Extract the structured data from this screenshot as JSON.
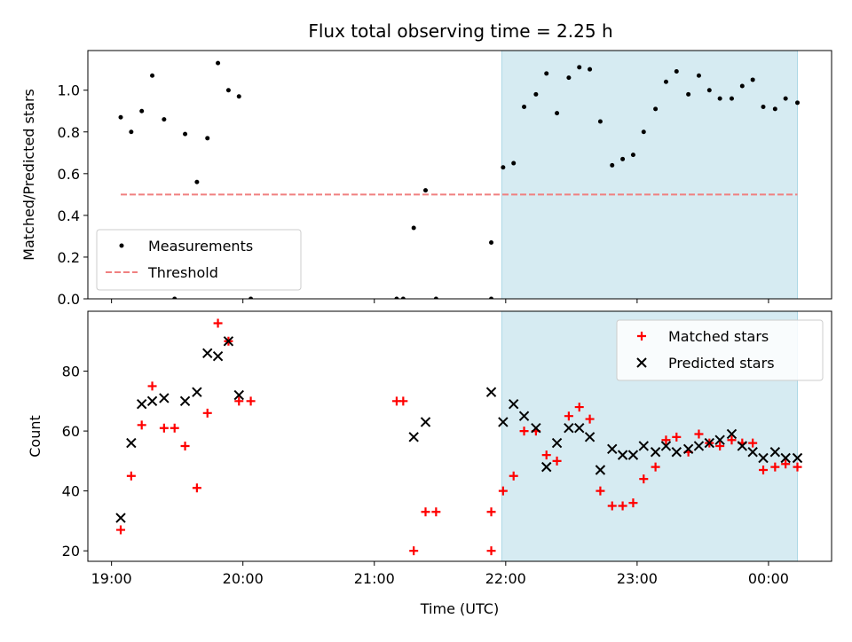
{
  "chart_data": {
    "title": "Flux total observing time = 2.25 h",
    "x_tick_labels": [
      "19:00",
      "20:00",
      "21:00",
      "22:00",
      "23:00",
      "00:00"
    ],
    "xlabel": "Time (UTC)",
    "x_unit": "hours UTC (values past 24 are after midnight)",
    "x_ticks": [
      19,
      20,
      21,
      22,
      23,
      24
    ],
    "xlim": [
      18.82,
      24.48
    ],
    "highlight_span": {
      "x": [
        21.97,
        24.22
      ],
      "color": "#add8e6"
    },
    "colors": {
      "measurements": "#000000",
      "threshold": "#f08080",
      "matched": "#ff0000",
      "predicted": "#000000"
    },
    "panels": [
      {
        "type": "scatter",
        "ylabel": "Matched/Predicted stars",
        "ylim": [
          0,
          1.19
        ],
        "y_ticks": [
          0.0,
          0.2,
          0.4,
          0.6,
          0.8,
          1.0
        ],
        "y_tick_labels": [
          "0.0",
          "0.2",
          "0.4",
          "0.6",
          "0.8",
          "1.0"
        ],
        "legend_position": "lower-left",
        "series": [
          {
            "name": "Measurements",
            "marker": "dot",
            "points": [
              [
                19.07,
                0.87
              ],
              [
                19.15,
                0.8
              ],
              [
                19.23,
                0.9
              ],
              [
                19.31,
                1.07
              ],
              [
                19.4,
                0.86
              ],
              [
                19.48,
                0.0
              ],
              [
                19.56,
                0.79
              ],
              [
                19.65,
                0.56
              ],
              [
                19.73,
                0.77
              ],
              [
                19.81,
                1.13
              ],
              [
                19.89,
                1.0
              ],
              [
                19.97,
                0.97
              ],
              [
                20.06,
                0.0
              ],
              [
                21.17,
                0.0
              ],
              [
                21.22,
                0.0
              ],
              [
                21.3,
                0.34
              ],
              [
                21.39,
                0.52
              ],
              [
                21.47,
                0.0
              ],
              [
                21.89,
                0.27
              ],
              [
                21.89,
                0.0
              ],
              [
                21.98,
                0.63
              ],
              [
                22.06,
                0.65
              ],
              [
                22.14,
                0.92
              ],
              [
                22.23,
                0.98
              ],
              [
                22.31,
                1.08
              ],
              [
                22.39,
                0.89
              ],
              [
                22.48,
                1.06
              ],
              [
                22.56,
                1.11
              ],
              [
                22.64,
                1.1
              ],
              [
                22.72,
                0.85
              ],
              [
                22.81,
                0.64
              ],
              [
                22.89,
                0.67
              ],
              [
                22.97,
                0.69
              ],
              [
                23.05,
                0.8
              ],
              [
                23.14,
                0.91
              ],
              [
                23.22,
                1.04
              ],
              [
                23.3,
                1.09
              ],
              [
                23.39,
                0.98
              ],
              [
                23.47,
                1.07
              ],
              [
                23.55,
                1.0
              ],
              [
                23.63,
                0.96
              ],
              [
                23.72,
                0.96
              ],
              [
                23.8,
                1.02
              ],
              [
                23.88,
                1.05
              ],
              [
                23.96,
                0.92
              ],
              [
                24.05,
                0.91
              ],
              [
                24.13,
                0.96
              ],
              [
                24.22,
                0.94
              ]
            ]
          },
          {
            "name": "Threshold",
            "marker": "dashed-line",
            "points": [
              [
                19.07,
                0.5
              ],
              [
                24.22,
                0.5
              ]
            ]
          }
        ]
      },
      {
        "type": "scatter",
        "ylabel": "Count",
        "ylim": [
          16.5,
          100
        ],
        "y_ticks": [
          20,
          40,
          60,
          80
        ],
        "y_tick_labels": [
          "20",
          "40",
          "60",
          "80"
        ],
        "legend_position": "top-right",
        "series": [
          {
            "name": "Matched stars",
            "marker": "plus",
            "points": [
              [
                19.07,
                27
              ],
              [
                19.15,
                45
              ],
              [
                19.23,
                62
              ],
              [
                19.31,
                75
              ],
              [
                19.4,
                61
              ],
              [
                19.48,
                61
              ],
              [
                19.56,
                55
              ],
              [
                19.65,
                41
              ],
              [
                19.73,
                66
              ],
              [
                19.81,
                96
              ],
              [
                19.89,
                90
              ],
              [
                19.97,
                70
              ],
              [
                20.06,
                70
              ],
              [
                21.17,
                70
              ],
              [
                21.22,
                70
              ],
              [
                21.3,
                20
              ],
              [
                21.39,
                33
              ],
              [
                21.47,
                33
              ],
              [
                21.89,
                33
              ],
              [
                21.89,
                20
              ],
              [
                21.98,
                40
              ],
              [
                22.06,
                45
              ],
              [
                22.14,
                60
              ],
              [
                22.23,
                60
              ],
              [
                22.31,
                52
              ],
              [
                22.39,
                50
              ],
              [
                22.48,
                65
              ],
              [
                22.56,
                68
              ],
              [
                22.64,
                64
              ],
              [
                22.72,
                40
              ],
              [
                22.81,
                35
              ],
              [
                22.89,
                35
              ],
              [
                22.97,
                36
              ],
              [
                23.05,
                44
              ],
              [
                23.14,
                48
              ],
              [
                23.22,
                57
              ],
              [
                23.3,
                58
              ],
              [
                23.39,
                53
              ],
              [
                23.47,
                59
              ],
              [
                23.55,
                56
              ],
              [
                23.63,
                55
              ],
              [
                23.72,
                57
              ],
              [
                23.8,
                56
              ],
              [
                23.88,
                56
              ],
              [
                23.96,
                47
              ],
              [
                24.05,
                48
              ],
              [
                24.13,
                49
              ],
              [
                24.22,
                48
              ]
            ]
          },
          {
            "name": "Predicted stars",
            "marker": "x",
            "points": [
              [
                19.07,
                31
              ],
              [
                19.15,
                56
              ],
              [
                19.23,
                69
              ],
              [
                19.31,
                70
              ],
              [
                19.4,
                71
              ],
              [
                19.56,
                70
              ],
              [
                19.65,
                73
              ],
              [
                19.73,
                86
              ],
              [
                19.81,
                85
              ],
              [
                19.89,
                90
              ],
              [
                19.97,
                72
              ],
              [
                21.3,
                58
              ],
              [
                21.39,
                63
              ],
              [
                21.89,
                73
              ],
              [
                21.98,
                63
              ],
              [
                22.06,
                69
              ],
              [
                22.14,
                65
              ],
              [
                22.23,
                61
              ],
              [
                22.31,
                48
              ],
              [
                22.39,
                56
              ],
              [
                22.48,
                61
              ],
              [
                22.56,
                61
              ],
              [
                22.64,
                58
              ],
              [
                22.72,
                47
              ],
              [
                22.81,
                54
              ],
              [
                22.89,
                52
              ],
              [
                22.97,
                52
              ],
              [
                23.05,
                55
              ],
              [
                23.14,
                53
              ],
              [
                23.22,
                55
              ],
              [
                23.3,
                53
              ],
              [
                23.39,
                54
              ],
              [
                23.47,
                55
              ],
              [
                23.55,
                56
              ],
              [
                23.63,
                57
              ],
              [
                23.72,
                59
              ],
              [
                23.8,
                55
              ],
              [
                23.88,
                53
              ],
              [
                23.96,
                51
              ],
              [
                24.05,
                53
              ],
              [
                24.13,
                51
              ],
              [
                24.22,
                51
              ]
            ]
          }
        ]
      }
    ]
  }
}
